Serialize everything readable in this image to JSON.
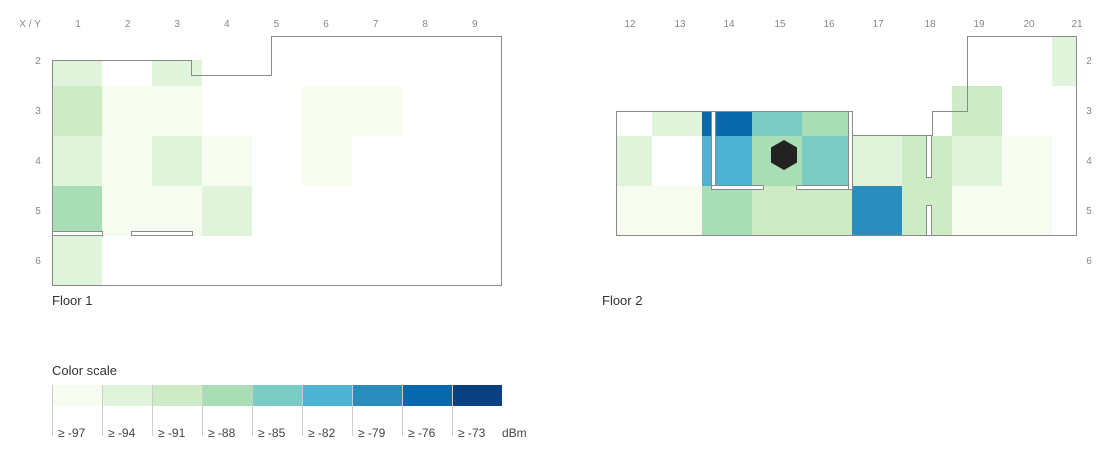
{
  "chart_data": {
    "type": "heatmap",
    "corner_label": "X / Y",
    "unit": "dBm",
    "colors": {
      "c0": "#f7fcf0",
      "c1": "#e0f3db",
      "c2": "#cdebc5",
      "c3": "#a8ddb5",
      "c4": "#7bccc4",
      "c5": "#4eb3d3",
      "c6": "#2b8cbe",
      "c7": "#0868ac",
      "c8": "#084081"
    },
    "color_scale": {
      "title": "Color scale",
      "steps": [
        {
          "label": "≥ -97",
          "color": "c0"
        },
        {
          "label": "≥ -94",
          "color": "c1"
        },
        {
          "label": "≥ -91",
          "color": "c2"
        },
        {
          "label": "≥ -88",
          "color": "c3"
        },
        {
          "label": "≥ -85",
          "color": "c4"
        },
        {
          "label": "≥ -82",
          "color": "c5"
        },
        {
          "label": "≥ -79",
          "color": "c6"
        },
        {
          "label": "≥ -76",
          "color": "c7"
        },
        {
          "label": "≥ -73",
          "color": "c8"
        }
      ]
    },
    "floors": [
      {
        "name": "Floor 1",
        "x_ticks": [
          "1",
          "2",
          "3",
          "4",
          "5",
          "6",
          "7",
          "8",
          "9"
        ],
        "y_ticks": [
          "2",
          "3",
          "4",
          "5",
          "6"
        ],
        "cells": [
          {
            "x": 1,
            "y": 2,
            "c": "c1"
          },
          {
            "x": 3,
            "y": 2,
            "c": "c1"
          },
          {
            "x": 1,
            "y": 3,
            "c": "c2"
          },
          {
            "x": 2,
            "y": 3,
            "c": "c0"
          },
          {
            "x": 3,
            "y": 3,
            "c": "c0"
          },
          {
            "x": 6,
            "y": 3,
            "c": "c0"
          },
          {
            "x": 7,
            "y": 3,
            "c": "c0"
          },
          {
            "x": 1,
            "y": 4,
            "c": "c1"
          },
          {
            "x": 2,
            "y": 4,
            "c": "c0"
          },
          {
            "x": 3,
            "y": 4,
            "c": "c1"
          },
          {
            "x": 4,
            "y": 4,
            "c": "c0"
          },
          {
            "x": 6,
            "y": 4,
            "c": "c0"
          },
          {
            "x": 1,
            "y": 5,
            "c": "c3"
          },
          {
            "x": 2,
            "y": 5,
            "c": "c0"
          },
          {
            "x": 3,
            "y": 5,
            "c": "c0"
          },
          {
            "x": 4,
            "y": 5,
            "c": "c1"
          },
          {
            "x": 1,
            "y": 6,
            "c": "c1"
          }
        ]
      },
      {
        "name": "Floor 2",
        "x_ticks": [
          "12",
          "13",
          "14",
          "15",
          "16",
          "17",
          "18",
          "19",
          "20",
          "21"
        ],
        "y_ticks": [
          "2",
          "3",
          "4",
          "5",
          "6"
        ],
        "cells": [
          {
            "x": 21,
            "y": 2,
            "c": "c1"
          },
          {
            "x": 13,
            "y": 3,
            "c": "c1"
          },
          {
            "x": 14,
            "y": 3,
            "c": "c7"
          },
          {
            "x": 15,
            "y": 3,
            "c": "c4"
          },
          {
            "x": 16,
            "y": 3,
            "c": "c3"
          },
          {
            "x": 19,
            "y": 3,
            "c": "c2"
          },
          {
            "x": 12,
            "y": 4,
            "c": "c1"
          },
          {
            "x": 14,
            "y": 4,
            "c": "c5"
          },
          {
            "x": 15,
            "y": 4,
            "c": "c3"
          },
          {
            "x": 16,
            "y": 4,
            "c": "c4"
          },
          {
            "x": 17,
            "y": 4,
            "c": "c1"
          },
          {
            "x": 18,
            "y": 4,
            "c": "c2"
          },
          {
            "x": 19,
            "y": 4,
            "c": "c1"
          },
          {
            "x": 20,
            "y": 4,
            "c": "c0"
          },
          {
            "x": 12,
            "y": 5,
            "c": "c0"
          },
          {
            "x": 13,
            "y": 5,
            "c": "c0"
          },
          {
            "x": 14,
            "y": 5,
            "c": "c3"
          },
          {
            "x": 15,
            "y": 5,
            "c": "c2"
          },
          {
            "x": 16,
            "y": 5,
            "c": "c2"
          },
          {
            "x": 17,
            "y": 5,
            "c": "c6"
          },
          {
            "x": 18,
            "y": 5,
            "c": "c2"
          },
          {
            "x": 19,
            "y": 5,
            "c": "c0"
          },
          {
            "x": 20,
            "y": 5,
            "c": "c0"
          }
        ],
        "access_point": {
          "x": 15,
          "y": 4,
          "icon": "access-point-hexagon-icon"
        }
      }
    ]
  }
}
